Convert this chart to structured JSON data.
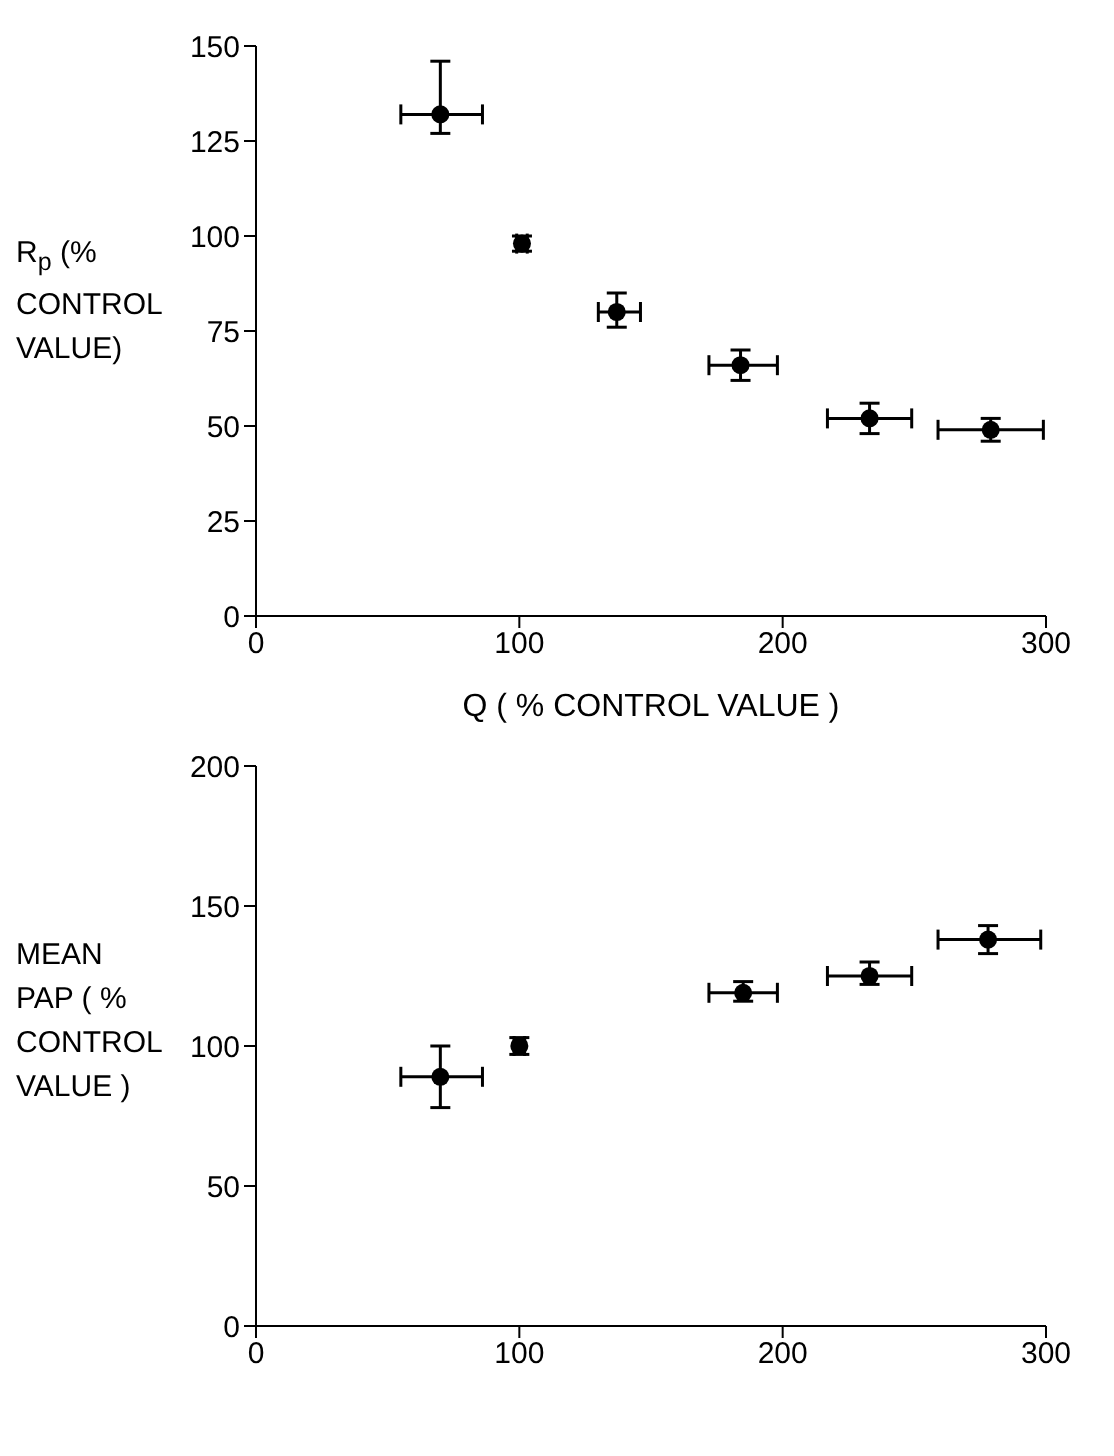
{
  "chart_data": [
    {
      "type": "scatter",
      "xlabel": "Q     ( % CONTROL VALUE )",
      "ylabel": "R$_{p}$ (% CONTROL VALUE)",
      "xlim": [
        0,
        300
      ],
      "xticks": [
        0,
        100,
        200,
        300
      ],
      "ylim": [
        0,
        150
      ],
      "yticks": [
        0,
        25,
        50,
        75,
        100,
        125,
        150
      ],
      "grid": false,
      "legend": false,
      "marker": "circle",
      "series": [
        {
          "color": "#000000",
          "x": [
            70,
            101,
            137,
            184,
            233,
            279
          ],
          "values": [
            132,
            98,
            80,
            66,
            52,
            49
          ],
          "errors": [
            [
              127,
              146
            ],
            [
              96,
              100
            ],
            [
              76,
              85
            ],
            [
              62,
              70
            ],
            [
              48,
              56
            ],
            [
              46,
              52
            ]
          ],
          "xerrors": [
            [
              55,
              86
            ],
            [
              99,
              103
            ],
            [
              130,
              146
            ],
            [
              172,
              198
            ],
            [
              217,
              249
            ],
            [
              259,
              299
            ]
          ]
        }
      ]
    },
    {
      "type": "scatter",
      "ylabel": "MEAN PAP ( % CONTROL VALUE )",
      "xlim": [
        0,
        300
      ],
      "xticks": [
        0,
        100,
        200,
        300
      ],
      "ylim": [
        0,
        200
      ],
      "yticks": [
        0,
        50,
        100,
        150,
        200
      ],
      "grid": false,
      "legend": false,
      "marker": "circle",
      "series": [
        {
          "color": "#000000",
          "x": [
            70,
            100,
            185,
            233,
            278
          ],
          "values": [
            89,
            100,
            119,
            125,
            138
          ],
          "errors": [
            [
              78,
              100
            ],
            [
              97,
              103
            ],
            [
              116,
              123
            ],
            [
              122,
              130
            ],
            [
              133,
              143
            ]
          ],
          "xerrors": [
            [
              55,
              86
            ],
            [
              98,
              102
            ],
            [
              172,
              198
            ],
            [
              217,
              249
            ],
            [
              259,
              298
            ]
          ]
        }
      ]
    }
  ]
}
